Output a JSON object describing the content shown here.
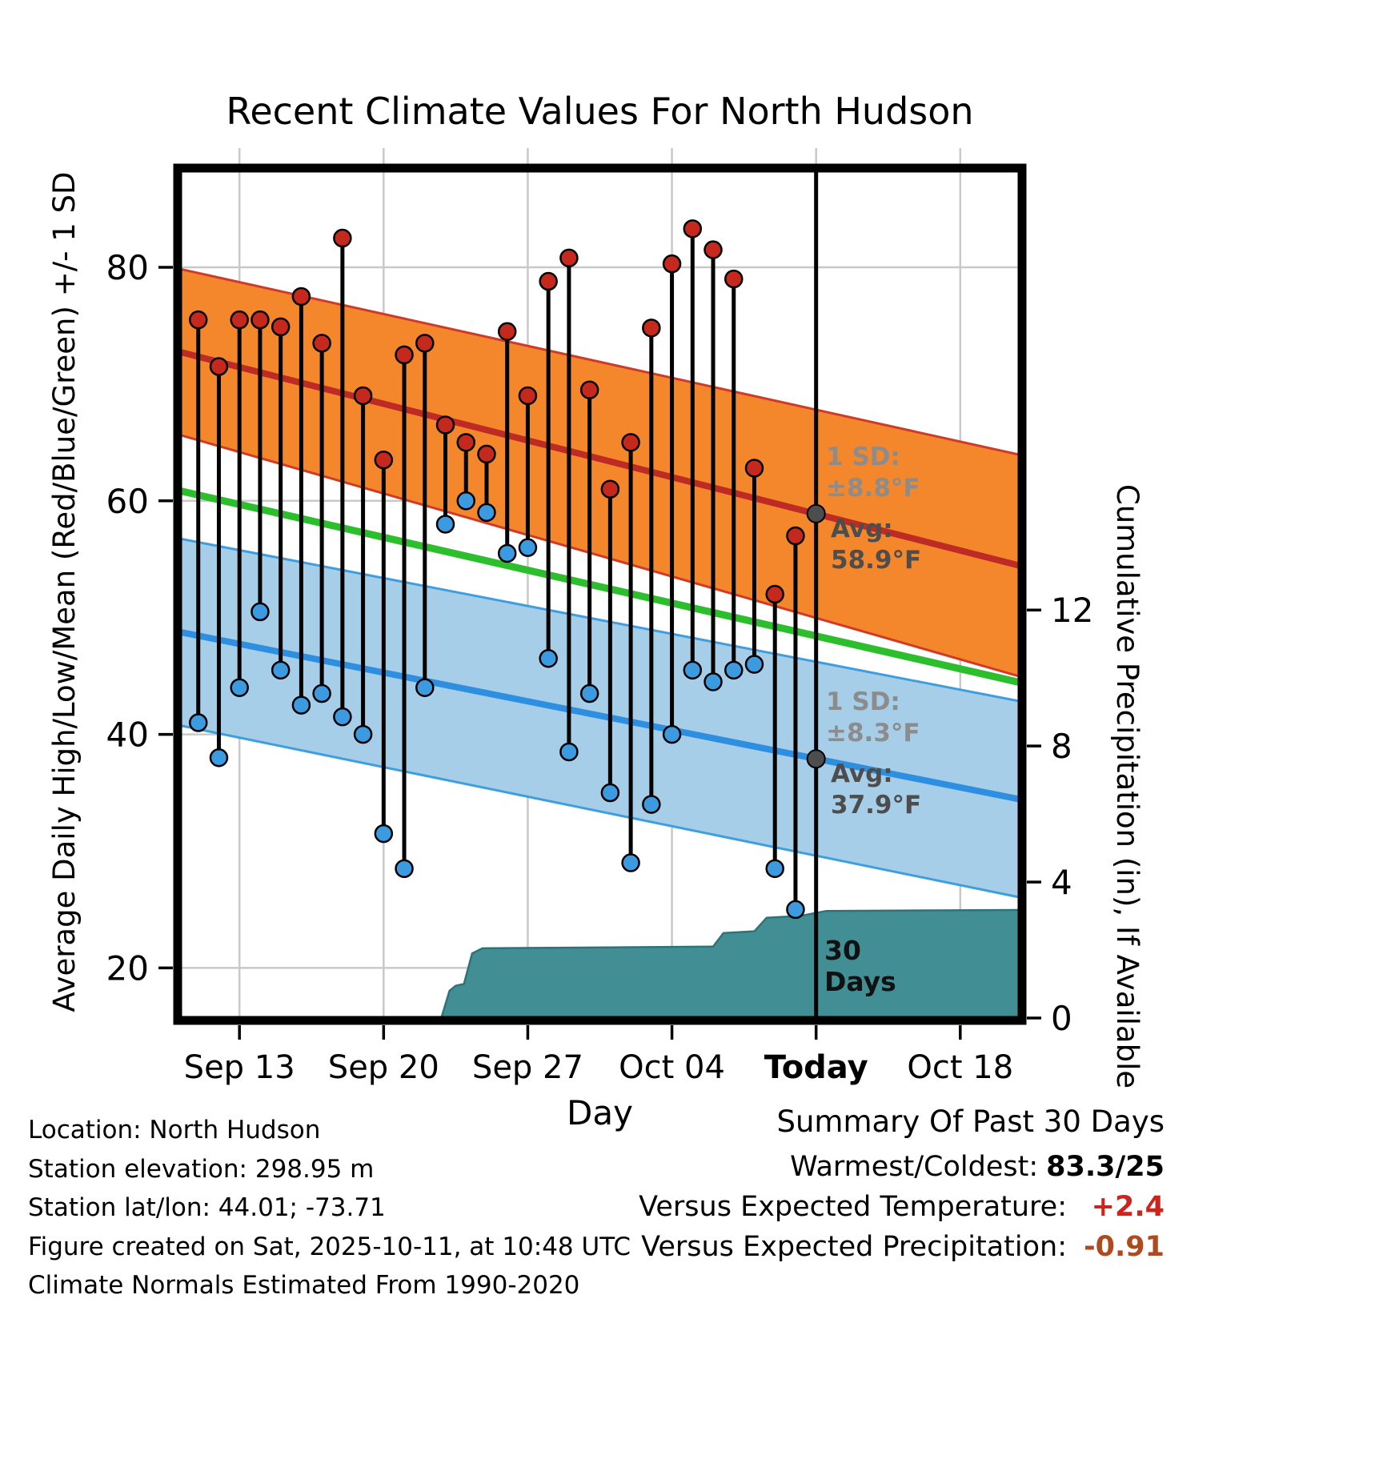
{
  "colors": {
    "high_band_fill": "#F4872B",
    "high_band_edge": "#D03A28",
    "high_line": "#BE2A24",
    "low_band_fill": "#A6CEE9",
    "low_band_edge": "#3E9EDE",
    "low_line": "#2E8FE0",
    "mean_line": "#2DBE2D",
    "precip_fill": "#418E95",
    "precip_edge": "#2F7278",
    "marker_high": "#C5291D",
    "marker_low": "#3C9BE0",
    "stem": "#000000",
    "grid": "#C9C9C9",
    "avg_dot": "#4D4D4D",
    "annotation_sd": "#8C8C8C",
    "annotation_avg": "#4D4D4D"
  },
  "chart_data": {
    "type": "combo",
    "title": "Recent Climate Values For North Hudson",
    "xlabel": "Day",
    "ylabel_left": "Average Daily High/Low/Mean (Red/Blue/Green) +/- 1 SD",
    "ylabel_right": "Cumulative Precipitation (in), If Available",
    "x_domain_days": [
      0,
      41
    ],
    "x_ticks": [
      {
        "label": "Sep 13",
        "day": 3,
        "bold": false
      },
      {
        "label": "Sep 20",
        "day": 10,
        "bold": false
      },
      {
        "label": "Sep 27",
        "day": 17,
        "bold": false
      },
      {
        "label": "Oct 04",
        "day": 24,
        "bold": false
      },
      {
        "label": "Today",
        "day": 31,
        "bold": true
      },
      {
        "label": "Oct 18",
        "day": 38,
        "bold": false
      }
    ],
    "ylim_left": [
      15.5,
      88.5
    ],
    "yticks_left": [
      20,
      40,
      60,
      80
    ],
    "ylim_right": [
      0,
      25
    ],
    "yticks_right": [
      0,
      4,
      8,
      12
    ],
    "today_day": 31,
    "daily": {
      "dates": [
        "Sep 11",
        "Sep 12",
        "Sep 13",
        "Sep 14",
        "Sep 15",
        "Sep 16",
        "Sep 17",
        "Sep 18",
        "Sep 19",
        "Sep 20",
        "Sep 21",
        "Sep 22",
        "Sep 23",
        "Sep 24",
        "Sep 25",
        "Sep 26",
        "Sep 27",
        "Sep 28",
        "Sep 29",
        "Sep 30",
        "Oct 01",
        "Oct 02",
        "Oct 03",
        "Oct 04",
        "Oct 05",
        "Oct 06",
        "Oct 07",
        "Oct 08",
        "Oct 09",
        "Oct 10"
      ],
      "days": [
        1,
        2,
        3,
        4,
        5,
        6,
        7,
        8,
        9,
        10,
        11,
        12,
        13,
        14,
        15,
        16,
        17,
        18,
        19,
        20,
        21,
        22,
        23,
        24,
        25,
        26,
        27,
        28,
        29,
        30
      ],
      "high": [
        75.5,
        71.5,
        75.5,
        75.5,
        74.9,
        77.5,
        73.5,
        82.5,
        69.0,
        63.5,
        72.5,
        73.5,
        66.5,
        65.0,
        64.0,
        74.5,
        69.0,
        78.8,
        80.8,
        69.5,
        61.0,
        65.0,
        74.8,
        80.3,
        83.3,
        81.5,
        79.0,
        62.8,
        52.0,
        57.0
      ],
      "low": [
        41.0,
        38.0,
        44.0,
        50.5,
        45.5,
        42.5,
        43.5,
        41.5,
        40.0,
        31.5,
        28.5,
        44.0,
        58.0,
        60.0,
        59.0,
        55.5,
        56.0,
        46.5,
        38.5,
        43.5,
        35.0,
        29.0,
        34.0,
        40.0,
        45.5,
        44.5,
        45.5,
        46.0,
        28.5,
        25.0
      ]
    },
    "normals": {
      "high_mean_start": 72.8,
      "high_mean_end": 54.4,
      "high_sd_start": 7.1,
      "high_sd_end": 9.5,
      "high_sd_today": 8.8,
      "high_mean_today": 58.9,
      "low_mean_start": 48.8,
      "low_mean_end": 34.4,
      "low_sd_start": 8.0,
      "low_sd_end": 8.4,
      "low_sd_today": 8.3,
      "low_mean_today": 37.9,
      "mean_start": 60.9,
      "mean_end": 44.4
    },
    "precip_cumulative": {
      "days": [
        0,
        12.8,
        13.2,
        13.5,
        13.9,
        14.3,
        14.8,
        26.0,
        26.5,
        28.0,
        28.6,
        30.2,
        31.5,
        41
      ],
      "inches": [
        0,
        0,
        0.8,
        0.95,
        1.0,
        1.9,
        2.05,
        2.1,
        2.5,
        2.55,
        2.95,
        3.0,
        3.15,
        3.18
      ]
    }
  },
  "annotations": {
    "high_sd": {
      "line1": "1 SD:",
      "line2": "±8.8°F"
    },
    "high_avg": {
      "line1": "Avg:",
      "line2": "58.9°F",
      "value": 58.9
    },
    "low_sd": {
      "line1": "1 SD:",
      "line2": "±8.3°F"
    },
    "low_avg": {
      "line1": "Avg:",
      "line2": "37.9°F",
      "value": 37.9
    },
    "days_marker": {
      "line1": "30",
      "line2": "Days"
    }
  },
  "footer": {
    "lines": [
      "Location: North Hudson",
      "Station elevation: 298.95 m",
      "Station lat/lon: 44.01; -73.71",
      "Figure created on Sat, 2025-10-11, at 10:48 UTC",
      "Climate Normals Estimated From 1990-2020"
    ]
  },
  "summary": {
    "title": "Summary Of Past 30 Days",
    "rows": [
      {
        "label": "Warmest/Coldest:",
        "value": "83.3/25",
        "color": "#000000"
      },
      {
        "label": "Versus Expected Temperature:",
        "value": "+2.4",
        "color": "#CC241C"
      },
      {
        "label": "Versus Expected Precipitation:",
        "value": "-0.91",
        "color": "#AE4A1E"
      }
    ]
  }
}
